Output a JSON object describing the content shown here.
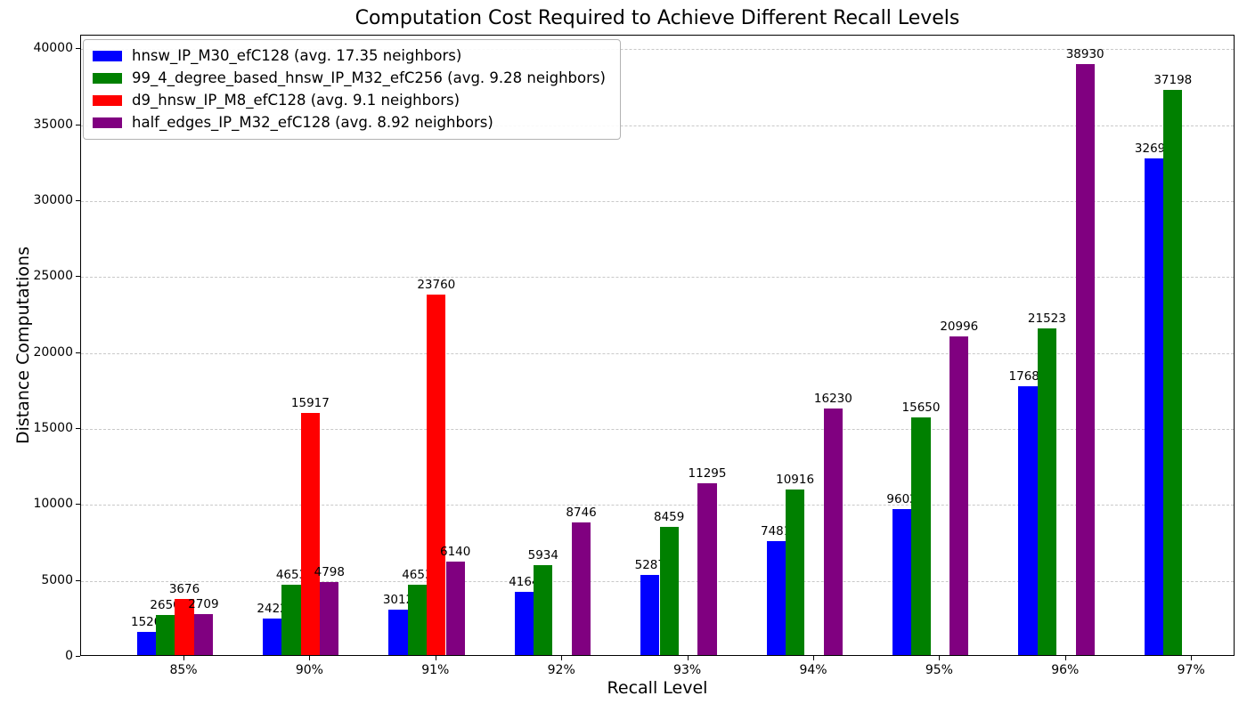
{
  "chart_data": {
    "type": "bar",
    "title": "Computation Cost Required to Achieve Different Recall Levels",
    "xlabel": "Recall Level",
    "ylabel": "Distance Computations",
    "categories": [
      "85%",
      "90%",
      "91%",
      "92%",
      "93%",
      "94%",
      "95%",
      "96%",
      "97%"
    ],
    "series": [
      {
        "name": "hnsw_IP_M30_efC128 (avg. 17.35 neighbors)",
        "color": "#0000ff",
        "values": [
          1520,
          2422,
          3012,
          4164,
          5287,
          7481,
          9602,
          17689,
          32692
        ]
      },
      {
        "name": "99_4_degree_based_hnsw_IP_M32_efC256 (avg. 9.28 neighbors)",
        "color": "#008000",
        "values": [
          2650,
          4653,
          4653,
          5934,
          8459,
          10916,
          15650,
          21523,
          37198
        ]
      },
      {
        "name": "d9_hnsw_IP_M8_efC128 (avg. 9.1 neighbors)",
        "color": "#ff0000",
        "values": [
          3676,
          15917,
          23760,
          null,
          null,
          null,
          null,
          null,
          null
        ]
      },
      {
        "name": "half_edges_IP_M32_efC128 (avg. 8.92 neighbors)",
        "color": "#800080",
        "values": [
          2709,
          4798,
          6140,
          8746,
          11295,
          16230,
          20996,
          38930,
          null
        ]
      }
    ],
    "yticks": [
      0,
      5000,
      10000,
      15000,
      20000,
      25000,
      30000,
      35000,
      40000
    ],
    "ylim": [
      0,
      40900
    ],
    "grid": "horizontal-dashed",
    "legend_position": "upper-left",
    "bar_value_labels": true
  }
}
